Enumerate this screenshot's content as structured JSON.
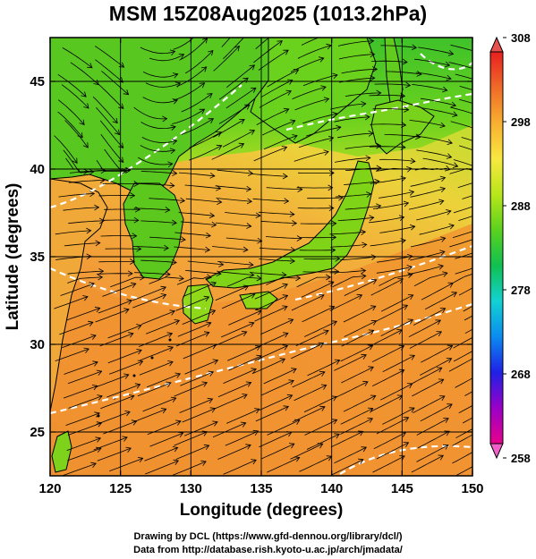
{
  "title": "MSM 15Z08Aug2025 (1013.2hPa)",
  "credit": {
    "line1": "Drawing by DCL (https://www.gfd-dennou.org/library/dcl/)",
    "line2": "Data from http://database.rish.kyoto-u.ac.jp/arch/jmadata/"
  },
  "map": {
    "lon_range": [
      120,
      150
    ],
    "lat_range": [
      22.5,
      47.5
    ],
    "xlabel": "Longitude (degrees)",
    "ylabel": "Latitude  (degrees)",
    "x_ticks": [
      {
        "value": 120,
        "label": "120"
      },
      {
        "value": 125,
        "label": "125"
      },
      {
        "value": 130,
        "label": "130"
      },
      {
        "value": 135,
        "label": "135"
      },
      {
        "value": 140,
        "label": "140"
      },
      {
        "value": 145,
        "label": "145"
      },
      {
        "value": 150,
        "label": "150"
      }
    ],
    "y_ticks": [
      {
        "value": 25,
        "label": "25"
      },
      {
        "value": 30,
        "label": "30"
      },
      {
        "value": 35,
        "label": "35"
      },
      {
        "value": 40,
        "label": "40"
      },
      {
        "value": 45,
        "label": "45"
      }
    ],
    "grid": true,
    "field": "temperature (K) with wind streamlines",
    "colors": {
      "land_green": "#6cd41a",
      "sea_orange": "#f39a3a",
      "sea_yellow": "#f2c52e",
      "north_green": "#4ec82a",
      "contour": "#ffffff",
      "coast": "#000000"
    }
  },
  "colorbar": {
    "min": 258,
    "max": 308,
    "labels": [
      {
        "value": 308,
        "label": "308"
      },
      {
        "value": 298,
        "label": "298"
      },
      {
        "value": 288,
        "label": "288"
      },
      {
        "value": 278,
        "label": "278"
      },
      {
        "value": 268,
        "label": "268"
      },
      {
        "value": 258,
        "label": "258"
      }
    ],
    "stops": [
      "#e8008c",
      "#9a00c8",
      "#2020e6",
      "#0a8cf0",
      "#12d2d2",
      "#10c050",
      "#5ad21e",
      "#b8e61a",
      "#f8e840",
      "#f8b030",
      "#f06a28",
      "#e82020"
    ]
  }
}
